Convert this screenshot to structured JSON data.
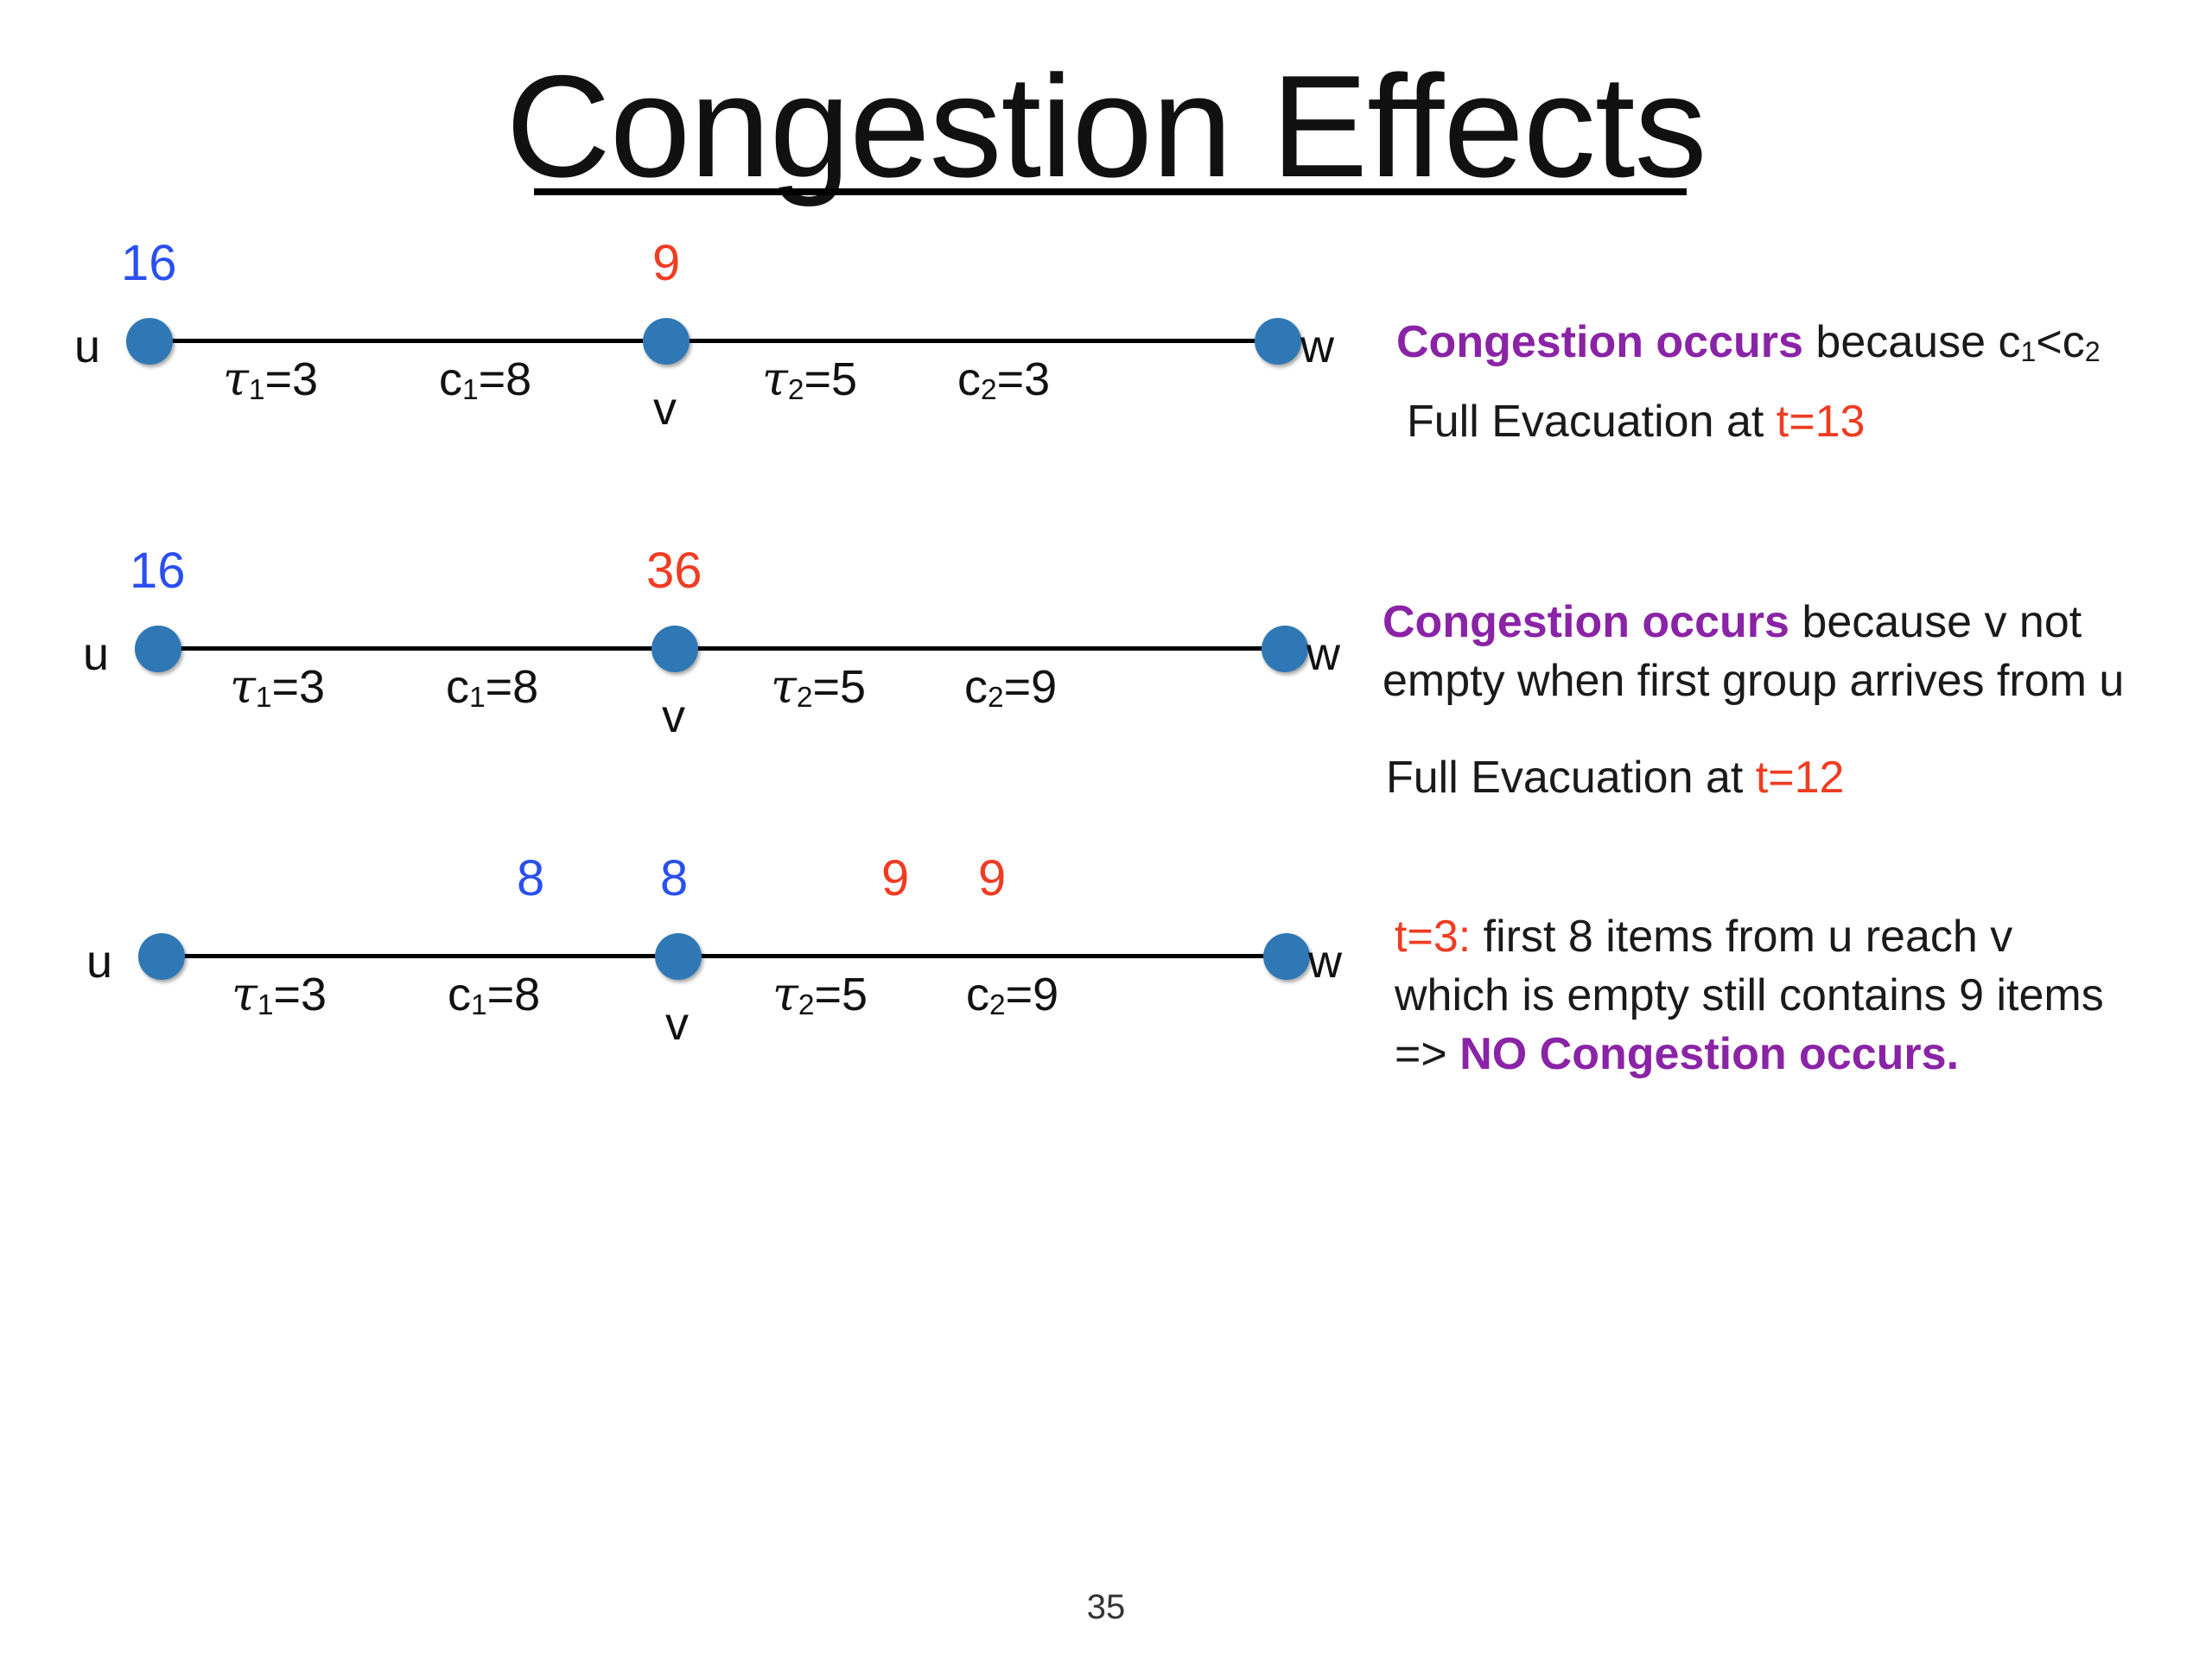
{
  "title": "Congestion  Effects",
  "labels": {
    "tau1": "τ",
    "tau2": "τ",
    "c": "c",
    "sub1": "1",
    "sub2": "2",
    "eq_tau1": "=3",
    "eq_c1": "=8",
    "eq_tau2": "=5",
    "u": "u",
    "v": "v",
    "w": "w"
  },
  "diagram1": {
    "count_u": "16",
    "count_v": "9",
    "eq_c2": "=3"
  },
  "diagram2": {
    "count_u": "16",
    "count_v": "36",
    "eq_c2": "=9"
  },
  "diagram3": {
    "count_a": "8",
    "count_b": "8",
    "count_c": "9",
    "count_d": "9",
    "eq_c2": "=9"
  },
  "text1": {
    "purple": "Congestion occurs",
    "because": " because  c",
    "sub_a": "1",
    "lt": "<c",
    "sub_b": "2",
    "evac": "Full Evacuation at ",
    "time": "t=13"
  },
  "text2": {
    "purple": "Congestion occurs",
    "line1_rest": " because v not",
    "line2": "empty when first group arrives from u",
    "evac": "Full Evacuation at ",
    "time": "t=12"
  },
  "text3": {
    "time": "t=3:",
    "line1_rest": "  first 8 items from u reach v",
    "line2": "which is empty still contains 9 items",
    "arrow": "=>  ",
    "purple": "NO Congestion occurs."
  },
  "colors": {
    "node": "#2f78b5",
    "blue_count": "#2a4ff0",
    "red_count": "#f03c22",
    "purple_text": "#8a23a6"
  },
  "page_number": "35"
}
